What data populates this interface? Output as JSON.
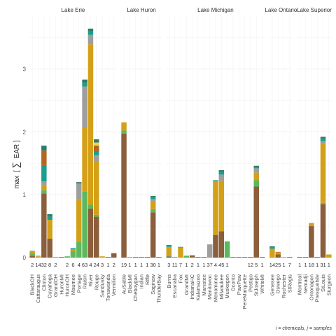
{
  "chart_data": {
    "type": "bar",
    "stacked": true,
    "ylabel": "max [ Σ EAR ]",
    "ylabel_parts": {
      "pre": "max",
      "sigma": "∑",
      "sub": "i",
      "var": "EAR",
      "post_j": "j"
    },
    "caption": "i = chemicals, j = samples",
    "ylim": [
      0,
      3.85
    ],
    "yticks": [
      0,
      1,
      2,
      3
    ],
    "grid": true,
    "segment_colors": [
      "#8B5E3C",
      "#5CB85C",
      "#D4A017",
      "#9E9E9E",
      "#1A9E8F",
      "#B5651D",
      "#E8D44D",
      "#2E7D6B",
      "#A0522D",
      "#7B5A3A"
    ],
    "panels": [
      {
        "name": "Lake Erie",
        "sites": [
          {
            "name": "BlackOH",
            "count": "2",
            "stack": [
              0.03,
              0.04,
              0.02,
              0.02
            ]
          },
          {
            "name": "Cattaraugus",
            "count": "14",
            "stack": [
              0.0,
              0.01,
              0.01,
              0.01
            ]
          },
          {
            "name": "Clinton",
            "count": "32",
            "stack": [
              1.02,
              0.05,
              0.08,
              0.06,
              0.26,
              0.23,
              0.0,
              0.08,
              0.0,
              0.0
            ]
          },
          {
            "name": "Cuyahoga",
            "count": "8",
            "stack": [
              0.3,
              0.0,
              0.3,
              0.0,
              0.05,
              0.0,
              0.0,
              0.04
            ]
          },
          {
            "name": "GrandOH",
            "count": "2",
            "stack": [
              0.0,
              0.01,
              0.0,
              0.0
            ]
          },
          {
            "name": "HuronMI",
            "count": "",
            "stack": [
              0.0
            ]
          },
          {
            "name": "HuronOH",
            "count": "2",
            "stack": [
              0.0,
              0.02
            ]
          },
          {
            "name": "Maumee",
            "count": "6",
            "stack": [
              0.0,
              0.1,
              0.03,
              0.0,
              0.02,
              0.0
            ]
          },
          {
            "name": "Portage",
            "count": "4",
            "stack": [
              0.0,
              0.25,
              0.68,
              0.25,
              0.0,
              0.0,
              0.0,
              0.02
            ]
          },
          {
            "name": "Raisin",
            "count": "63",
            "stack": [
              0.0,
              1.05,
              1.02,
              0.65,
              0.06,
              0.0,
              0.0,
              0.05
            ]
          },
          {
            "name": "River",
            "count": "4",
            "stack": [
              0.78,
              0.06,
              2.55,
              0.15,
              0.06,
              0.0,
              0.0,
              0.04
            ]
          },
          {
            "name": "Rouge",
            "count": "24",
            "stack": [
              0.65,
              0.03,
              0.85,
              0.1,
              0.05,
              0.1,
              0.05,
              0.05
            ]
          },
          {
            "name": "Sandusky",
            "count": "3",
            "stack": [
              0.0,
              0.0,
              0.02
            ]
          },
          {
            "name": "Tonawanda",
            "count": "1",
            "stack": [
              0.0
            ]
          },
          {
            "name": "Vermilion",
            "count": "2",
            "stack": [
              0.07
            ]
          }
        ]
      },
      {
        "name": "Lake Huron",
        "sites": [
          {
            "name": "AuSable",
            "count": "19",
            "stack": [
              1.97,
              0.05,
              0.13
            ]
          },
          {
            "name": "BlackMI",
            "count": "1",
            "stack": [
              0.0,
              0.01
            ]
          },
          {
            "name": "Cheboygan",
            "count": "1",
            "stack": [
              0.01
            ]
          },
          {
            "name": "Indian",
            "count": "1",
            "stack": [
              0.0
            ]
          },
          {
            "name": "Rifle",
            "count": "1",
            "stack": [
              0.0
            ]
          },
          {
            "name": "Saginaw",
            "count": "30",
            "stack": [
              0.72,
              0.05,
              0.12,
              0.04,
              0.03,
              0.0,
              0.0,
              0.02
            ]
          },
          {
            "name": "ThunderBay",
            "count": "1",
            "stack": [
              0.0
            ]
          }
        ]
      },
      {
        "name": "Lake Michigan",
        "sites": [
          {
            "name": "Burns",
            "count": "3",
            "stack": [
              0.02,
              0.01,
              0.14,
              0.0,
              0.02,
              0.0,
              0.0,
              0.01
            ]
          },
          {
            "name": "Escanaba",
            "count": "11",
            "stack": [
              0.0,
              0.01,
              0.0
            ]
          },
          {
            "name": "Fox",
            "count": "7",
            "stack": [
              0.0,
              0.01,
              0.15,
              0.0,
              0.01
            ]
          },
          {
            "name": "GrandMI",
            "count": "1",
            "stack": [
              0.0,
              0.03
            ]
          },
          {
            "name": "IndianaHC",
            "count": "2",
            "stack": [
              0.03,
              0.01
            ]
          },
          {
            "name": "Kalamazoo",
            "count": "1",
            "stack": [
              0.0
            ]
          },
          {
            "name": "Manistee",
            "count": "1",
            "stack": [
              0.0
            ]
          },
          {
            "name": "Manitowoc",
            "count": "37",
            "stack": [
              0.0,
              0.01,
              0.0,
              0.2
            ]
          },
          {
            "name": "Menominee",
            "count": "4",
            "stack": [
              0.36,
              0.0,
              0.85,
              0.0,
              0.02
            ]
          },
          {
            "name": "Milwaukee",
            "count": "45",
            "stack": [
              0.42,
              0.0,
              0.8,
              0.1,
              0.04,
              0.0,
              0.0,
              0.03
            ]
          },
          {
            "name": "Muskegon",
            "count": "1",
            "stack": [
              0.0,
              0.25,
              0.01
            ]
          },
          {
            "name": "Oconto",
            "count": "",
            "stack": [
              0.0
            ]
          },
          {
            "name": "PawPaw",
            "count": "",
            "stack": [
              0.0
            ]
          },
          {
            "name": "PereMarquette",
            "count": "",
            "stack": [
              0.0
            ]
          },
          {
            "name": "Pestigo",
            "count": "12",
            "stack": [
              0.0
            ]
          },
          {
            "name": "StJoseph",
            "count": "5",
            "stack": [
              1.13,
              0.1,
              0.12,
              0.07,
              0.02,
              0.0,
              0.0,
              0.02
            ]
          },
          {
            "name": "WhiteMI",
            "count": "1",
            "stack": [
              0.0
            ]
          }
        ]
      },
      {
        "name": "Lake Ontario",
        "sites": [
          {
            "name": "Genesee",
            "count": "14",
            "stack": [
              0.0,
              0.01,
              0.13,
              0.0,
              0.02,
              0.0,
              0.0,
              0.02
            ]
          },
          {
            "name": "Oswego",
            "count": "25",
            "stack": [
              0.05,
              0.0,
              0.03,
              0.0,
              0.0,
              0.01
            ]
          },
          {
            "name": "Rochester",
            "count": "1",
            "stack": [
              0.0,
              0.0,
              0.01
            ]
          },
          {
            "name": "StRegis",
            "count": "7",
            "stack": [
              0.0
            ]
          }
        ]
      },
      {
        "name": "Lake Superior",
        "sites": [
          {
            "name": "Montreal",
            "count": "1",
            "stack": [
              0.0
            ]
          },
          {
            "name": "Nemadji",
            "count": "1",
            "stack": [
              0.0
            ]
          },
          {
            "name": "Ontonagon",
            "count": "18",
            "stack": [
              0.5,
              0.0,
              0.05
            ]
          },
          {
            "name": "PresqueIsle",
            "count": "1",
            "stack": [
              0.0
            ]
          },
          {
            "name": "StLouis",
            "count": "31",
            "stack": [
              0.85,
              0.02,
              0.95,
              0.03,
              0.04,
              0.0,
              0.0,
              0.03
            ]
          },
          {
            "name": "Sturgeon",
            "count": "1",
            "stack": [
              0.0,
              0.0,
              0.05
            ]
          }
        ]
      }
    ]
  }
}
